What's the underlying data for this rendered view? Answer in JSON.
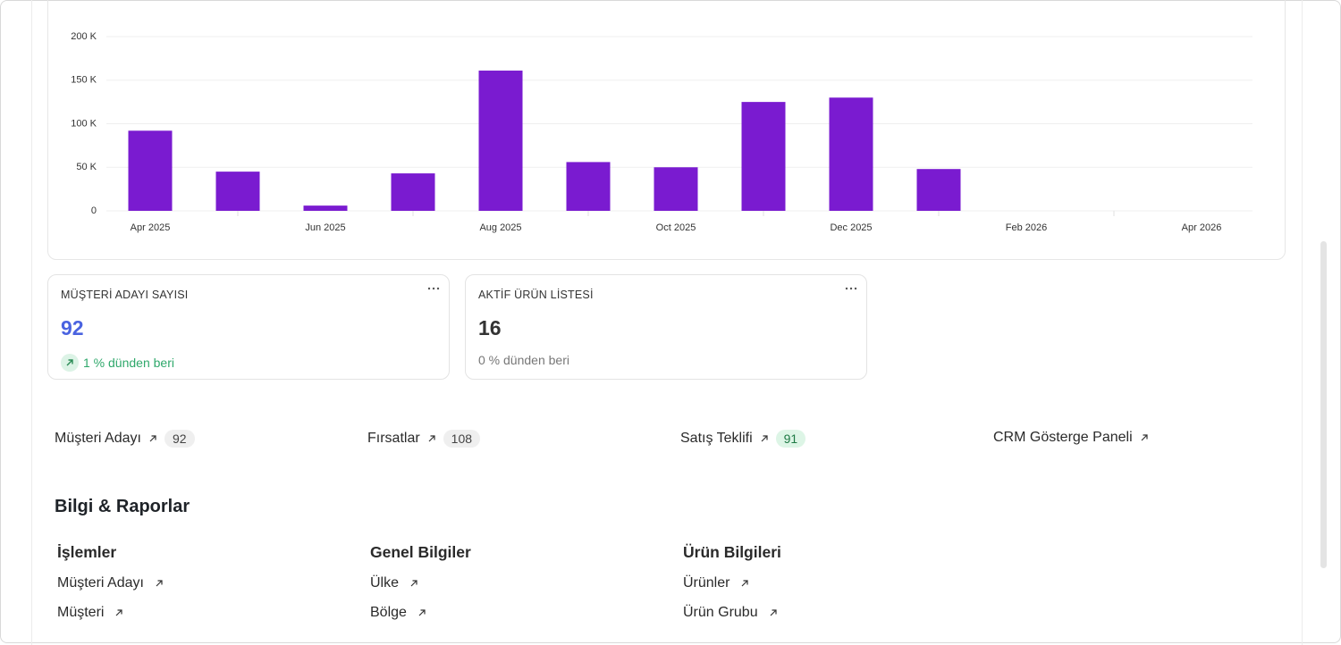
{
  "chart_data": {
    "type": "bar",
    "categories": [
      "Apr 2025",
      null,
      "Jun 2025",
      null,
      "Aug 2025",
      null,
      "Oct 2025",
      null,
      "Dec 2025",
      null,
      "Feb 2026",
      null,
      "Apr 2026"
    ],
    "values": [
      92000,
      45000,
      6000,
      43000,
      161000,
      56000,
      50000,
      125000,
      130000,
      48000,
      null,
      null,
      null
    ],
    "color": "#7a1bd0",
    "ylim": [
      0,
      200000
    ],
    "yticks": [
      0,
      {
        "value": 50000,
        "label": "50 K"
      },
      {
        "value": 100000,
        "label": "100 K"
      },
      {
        "value": 150000,
        "label": "150 K"
      },
      {
        "value": 200000,
        "label": "200 K"
      }
    ],
    "grid": true
  },
  "cards": [
    {
      "title": "MÜŞTERİ ADAYI SAYISI",
      "value": 92,
      "delta": "1 % dünden beri"
    },
    {
      "title": "AKTİF ÜRÜN LİSTESİ",
      "value": 16,
      "delta": "0 % dünden beri"
    }
  ],
  "shortcuts": [
    {
      "label": "Müşteri Adayı",
      "count": 92
    },
    {
      "label": "Fırsatlar",
      "count": 108
    },
    {
      "label": "Satış Teklifi",
      "count": 91
    },
    {
      "label": "CRM Gösterge Paneli"
    }
  ],
  "reports": {
    "title": "Bilgi & Raporlar",
    "sections": [
      {
        "title": "İşlemler",
        "links": [
          "Müşteri Adayı",
          "Müşteri"
        ]
      },
      {
        "title": "Genel Bilgiler",
        "links": [
          "Ülke",
          "Bölge"
        ]
      },
      {
        "title": "Ürün Bilgileri",
        "links": [
          "Ürünler",
          "Ürün Grubu"
        ]
      }
    ]
  }
}
